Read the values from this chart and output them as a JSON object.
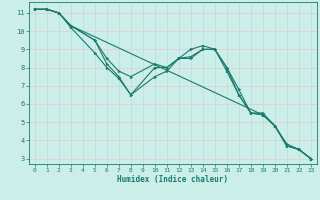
{
  "xlabel": "Humidex (Indice chaleur)",
  "bg_color": "#cceee8",
  "line_color": "#1a7a6e",
  "grid_color_h": "#e8c8c8",
  "grid_color_v": "#b8dedd",
  "xlim": [
    -0.5,
    23.5
  ],
  "ylim": [
    2.7,
    11.6
  ],
  "xticks": [
    0,
    1,
    2,
    3,
    4,
    5,
    6,
    7,
    8,
    9,
    10,
    11,
    12,
    13,
    14,
    15,
    16,
    17,
    18,
    19,
    20,
    21,
    22,
    23
  ],
  "yticks": [
    3,
    4,
    5,
    6,
    7,
    8,
    9,
    10,
    11
  ],
  "lines": [
    {
      "x": [
        0,
        1,
        2,
        3,
        5,
        6,
        7,
        8,
        10,
        11,
        12,
        13,
        14,
        15,
        16,
        17,
        18,
        19,
        20,
        21,
        22,
        23
      ],
      "y": [
        11.2,
        11.2,
        11.0,
        10.2,
        8.8,
        8.0,
        7.4,
        6.5,
        8.0,
        8.0,
        8.5,
        8.6,
        9.0,
        9.0,
        7.8,
        6.5,
        5.5,
        5.4,
        4.8,
        3.7,
        3.5,
        3.0
      ]
    },
    {
      "x": [
        0,
        1,
        2,
        3,
        5,
        6,
        7,
        8,
        10,
        11,
        12,
        13,
        14,
        15,
        16,
        17,
        18,
        19,
        20,
        21,
        22,
        23
      ],
      "y": [
        11.2,
        11.2,
        11.0,
        10.3,
        9.5,
        8.5,
        7.8,
        7.5,
        8.2,
        8.0,
        8.5,
        9.0,
        9.2,
        9.0,
        8.0,
        6.8,
        5.5,
        5.5,
        4.8,
        3.8,
        3.5,
        3.0
      ]
    },
    {
      "x": [
        0,
        1,
        2,
        3,
        5,
        6,
        7,
        8,
        10,
        11,
        12,
        13,
        14,
        15,
        16,
        17,
        18,
        19,
        20,
        21,
        22,
        23
      ],
      "y": [
        11.2,
        11.2,
        11.0,
        10.3,
        9.5,
        8.2,
        7.5,
        6.5,
        7.5,
        7.8,
        8.5,
        8.5,
        9.0,
        9.0,
        8.0,
        6.5,
        5.5,
        5.4,
        4.8,
        3.7,
        3.5,
        3.0
      ]
    },
    {
      "x": [
        0,
        1,
        2,
        3,
        19,
        20,
        21,
        22,
        23
      ],
      "y": [
        11.2,
        11.2,
        11.0,
        10.3,
        5.4,
        4.8,
        3.7,
        3.5,
        3.0
      ]
    }
  ]
}
